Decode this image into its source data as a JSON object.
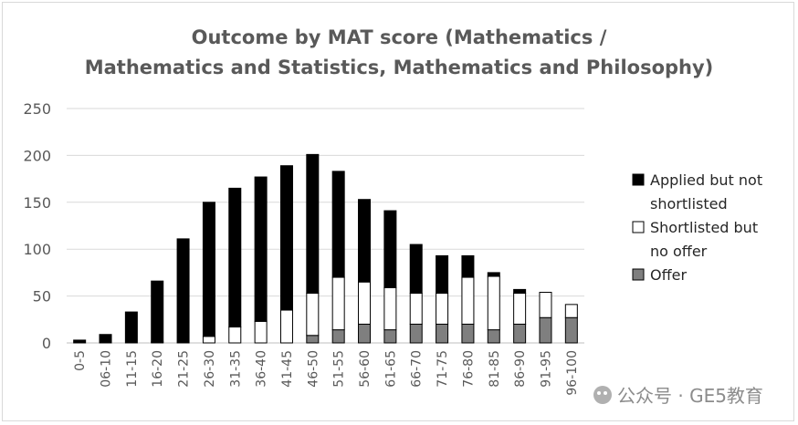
{
  "chart_data": {
    "type": "bar",
    "stacked": true,
    "title_lines": [
      "Outcome by MAT score (Mathematics /",
      "Mathematics and Statistics, Mathematics and Philosophy)"
    ],
    "categories": [
      "0-5",
      "06-10",
      "11-15",
      "16-20",
      "21-25",
      "26-30",
      "31-35",
      "36-40",
      "41-45",
      "46-50",
      "51-55",
      "56-60",
      "61-65",
      "66-70",
      "71-75",
      "76-80",
      "81-85",
      "86-90",
      "91-95",
      "96-100"
    ],
    "series": [
      {
        "name": "Offer",
        "color": "#7f7f7f",
        "values": [
          0,
          0,
          0,
          0,
          0,
          0,
          0,
          0,
          0,
          8,
          14,
          20,
          14,
          20,
          20,
          20,
          14,
          20,
          27,
          27
        ]
      },
      {
        "name": "Shortlisted but no offer",
        "color": "#ffffff",
        "values": [
          0,
          0,
          0,
          1,
          0,
          7,
          17,
          23,
          35,
          45,
          56,
          45,
          45,
          33,
          33,
          50,
          57,
          33,
          27,
          14
        ]
      },
      {
        "name": "Applied but not shortlisted",
        "color": "#000000",
        "values": [
          3,
          9,
          33,
          65,
          111,
          143,
          148,
          154,
          154,
          148,
          113,
          88,
          82,
          52,
          40,
          23,
          4,
          4,
          0,
          0
        ]
      }
    ],
    "legend_lines": [
      {
        "series": "Applied but not shortlisted",
        "lines": [
          "Applied but not",
          "shortlisted"
        ]
      },
      {
        "series": "Shortlisted but no offer",
        "lines": [
          "Shortlisted but",
          "no offer"
        ]
      },
      {
        "series": "Offer",
        "lines": [
          "Offer"
        ]
      }
    ],
    "legend_position": "right",
    "ylim": [
      0,
      250
    ],
    "yticks": [
      0,
      50,
      100,
      150,
      200,
      250
    ],
    "grid": true,
    "xlabel": "",
    "ylabel": ""
  },
  "watermark": "公众号 · GE5教育"
}
